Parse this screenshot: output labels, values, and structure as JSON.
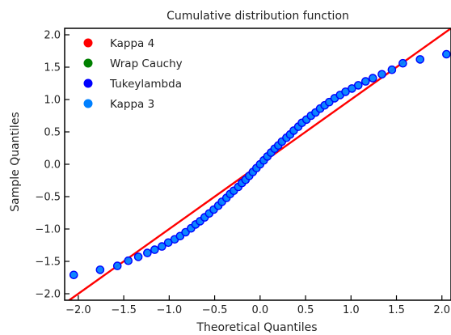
{
  "chart_data": {
    "type": "scatter",
    "title": "Cumulative distribution function",
    "xlabel": "Theoretical Quantiles",
    "ylabel": "Sample Quantiles",
    "xlim": [
      -2.15,
      2.1
    ],
    "ylim": [
      -2.1,
      2.1
    ],
    "xticks": [
      -2.0,
      -1.5,
      -1.0,
      -0.5,
      0.0,
      0.5,
      1.0,
      1.5,
      2.0
    ],
    "xtick_labels": [
      "−2.0",
      "−1.5",
      "−1.0",
      "−0.5",
      "0.0",
      "0.5",
      "1.0",
      "1.5",
      "2.0"
    ],
    "yticks": [
      -2.0,
      -1.5,
      -1.0,
      -0.5,
      0.0,
      0.5,
      1.0,
      1.5,
      2.0
    ],
    "ytick_labels": [
      "−2.0",
      "−1.5",
      "−1.0",
      "−0.5",
      "0.0",
      "0.5",
      "1.0",
      "1.5",
      "2.0"
    ],
    "legend": {
      "placement": "top-left",
      "entries": [
        {
          "label": "Kappa 4",
          "color": "#ff0000"
        },
        {
          "label": "Wrap Cauchy",
          "color": "#008000"
        },
        {
          "label": "Tukeylambda",
          "color": "#0000ff"
        },
        {
          "label": "Kappa 3",
          "color": "#0080ff"
        }
      ]
    },
    "reference_line": {
      "color": "#ff0000",
      "x": [
        -2.15,
        2.1
      ],
      "y": [
        -2.15,
        2.1
      ]
    },
    "series": [
      {
        "name": "Kappa 3",
        "color": "#0080ff",
        "edge_color": "#0000ff",
        "points": [
          [
            -2.05,
            -1.71
          ],
          [
            -1.76,
            -1.63
          ],
          [
            -1.57,
            -1.57
          ],
          [
            -1.45,
            -1.49
          ],
          [
            -1.34,
            -1.43
          ],
          [
            -1.24,
            -1.37
          ],
          [
            -1.16,
            -1.32
          ],
          [
            -1.08,
            -1.27
          ],
          [
            -1.01,
            -1.21
          ],
          [
            -0.94,
            -1.16
          ],
          [
            -0.88,
            -1.11
          ],
          [
            -0.82,
            -1.05
          ],
          [
            -0.76,
            -0.99
          ],
          [
            -0.71,
            -0.93
          ],
          [
            -0.66,
            -0.88
          ],
          [
            -0.61,
            -0.82
          ],
          [
            -0.56,
            -0.76
          ],
          [
            -0.51,
            -0.7
          ],
          [
            -0.46,
            -0.64
          ],
          [
            -0.42,
            -0.58
          ],
          [
            -0.37,
            -0.52
          ],
          [
            -0.33,
            -0.46
          ],
          [
            -0.29,
            -0.41
          ],
          [
            -0.24,
            -0.35
          ],
          [
            -0.2,
            -0.29
          ],
          [
            -0.16,
            -0.24
          ],
          [
            -0.12,
            -0.18
          ],
          [
            -0.08,
            -0.12
          ],
          [
            -0.04,
            -0.06
          ],
          [
            0.0,
            0.0
          ],
          [
            0.04,
            0.06
          ],
          [
            0.08,
            0.12
          ],
          [
            0.12,
            0.18
          ],
          [
            0.16,
            0.24
          ],
          [
            0.2,
            0.29
          ],
          [
            0.24,
            0.35
          ],
          [
            0.29,
            0.41
          ],
          [
            0.33,
            0.46
          ],
          [
            0.37,
            0.52
          ],
          [
            0.42,
            0.58
          ],
          [
            0.46,
            0.64
          ],
          [
            0.51,
            0.69
          ],
          [
            0.56,
            0.75
          ],
          [
            0.61,
            0.8
          ],
          [
            0.66,
            0.86
          ],
          [
            0.71,
            0.91
          ],
          [
            0.76,
            0.96
          ],
          [
            0.82,
            1.02
          ],
          [
            0.88,
            1.07
          ],
          [
            0.94,
            1.12
          ],
          [
            1.01,
            1.17
          ],
          [
            1.08,
            1.22
          ],
          [
            1.16,
            1.28
          ],
          [
            1.24,
            1.33
          ],
          [
            1.34,
            1.39
          ],
          [
            1.45,
            1.46
          ],
          [
            1.57,
            1.56
          ],
          [
            1.76,
            1.62
          ],
          [
            2.05,
            1.7
          ]
        ]
      }
    ]
  }
}
